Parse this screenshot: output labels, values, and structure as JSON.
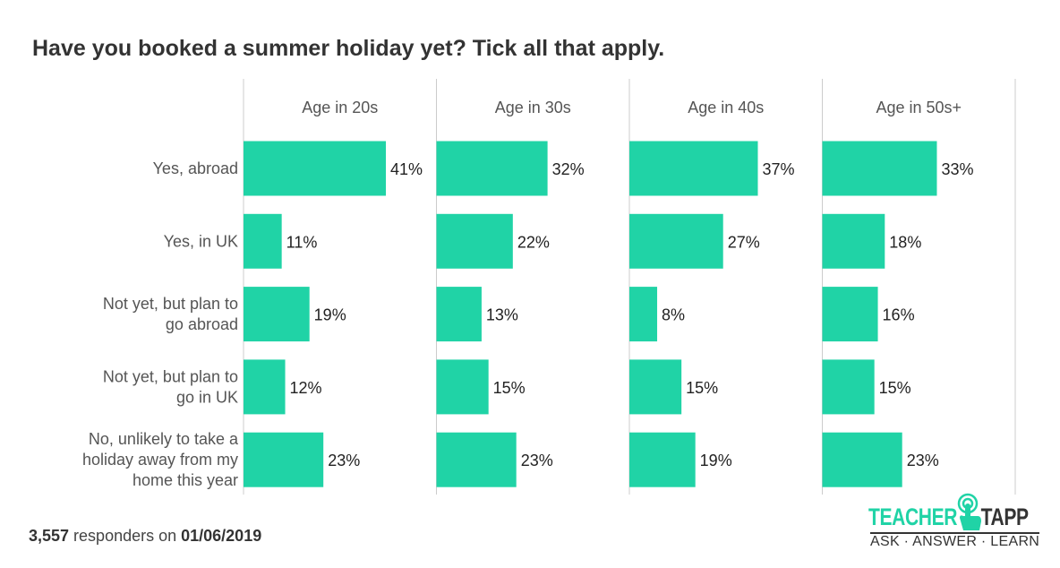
{
  "chart_data": {
    "type": "bar",
    "orientation": "horizontal",
    "title": "Have you booked a summer holiday yet? Tick all that apply.",
    "categories": [
      "Yes, abroad",
      "Yes, in UK",
      "Not yet, but plan to go abroad",
      "Not yet, but plan to go in UK",
      "No, unlikely to take a holiday away from my home this year"
    ],
    "series": [
      {
        "name": "Age in 20s",
        "values": [
          41,
          11,
          19,
          12,
          23
        ]
      },
      {
        "name": "Age in 30s",
        "values": [
          32,
          22,
          13,
          15,
          23
        ]
      },
      {
        "name": "Age in 40s",
        "values": [
          37,
          27,
          8,
          15,
          19
        ]
      },
      {
        "name": "Age in 50s+",
        "values": [
          33,
          18,
          16,
          15,
          23
        ]
      }
    ],
    "value_suffix": "%",
    "xlim": [
      0,
      55
    ],
    "bar_color": "#20d3a6"
  },
  "footer": {
    "count": "3,557",
    "text": " responders on ",
    "date": "01/06/2019"
  },
  "logo": {
    "left": "TEACHER",
    "right": "TAPP",
    "tagline": "ASK · ANSWER · LEARN"
  }
}
